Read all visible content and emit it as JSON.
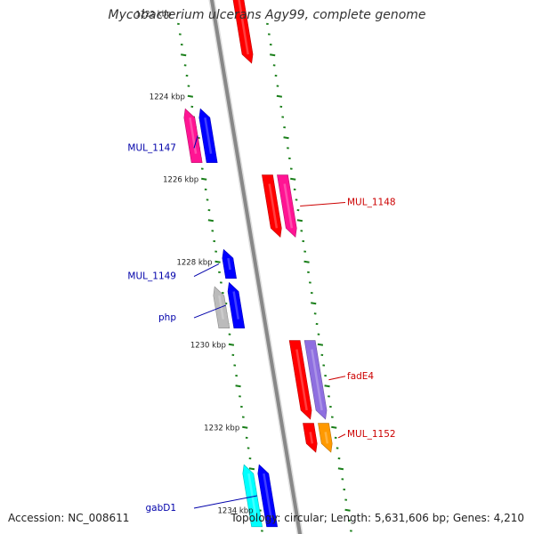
{
  "title": "Mycobacterium ulcerans Agy99, complete genome",
  "footer": {
    "accession_label": "Accession:",
    "accession": "NC_008611",
    "topology_label": "Topology:",
    "topology": "circular",
    "length_label": "Length:",
    "length": "5,631,606 bp",
    "genes_label": "Genes:",
    "genes": "4,210"
  },
  "colors": {
    "backbone": "#888888",
    "tick": "#1a7f1a",
    "label_blue": "#0000aa",
    "label_red": "#cc0000",
    "kbp_label": "#222222"
  },
  "scale_unit": "kbp",
  "kbp_markers": [
    1222,
    1224,
    1226,
    1228,
    1230,
    1232,
    1234
  ],
  "genes": [
    {
      "id": "g-top",
      "strand": "forward",
      "track": 1,
      "start_kbp": 1221.3,
      "end_kbp": 1223.2,
      "color": "#ff0000"
    },
    {
      "id": "g1",
      "strand": "reverse",
      "track": 2,
      "start_kbp": 1224.3,
      "end_kbp": 1225.6,
      "color": "#ff1493"
    },
    {
      "id": "g2",
      "strand": "reverse",
      "track": 1,
      "start_kbp": 1224.3,
      "end_kbp": 1225.6,
      "color": "#0000ff",
      "name": "MUL_1147",
      "side": "left",
      "label_color": "#0000aa"
    },
    {
      "id": "g3",
      "strand": "forward",
      "track": 1,
      "start_kbp": 1225.9,
      "end_kbp": 1227.4,
      "color": "#ff0000",
      "name": "MUL_1148",
      "side": "right",
      "label_color": "#cc0000"
    },
    {
      "id": "g4",
      "strand": "forward",
      "track": 2,
      "start_kbp": 1225.9,
      "end_kbp": 1227.4,
      "color": "#ff1493"
    },
    {
      "id": "g5",
      "strand": "reverse",
      "track": 1,
      "start_kbp": 1227.7,
      "end_kbp": 1228.4,
      "color": "#0000ff",
      "name": "MUL_1149",
      "side": "left",
      "label_color": "#0000aa"
    },
    {
      "id": "g6",
      "strand": "reverse",
      "track": 2,
      "start_kbp": 1228.6,
      "end_kbp": 1229.6,
      "color": "#bbbbbb"
    },
    {
      "id": "g7",
      "strand": "reverse",
      "track": 1,
      "start_kbp": 1228.5,
      "end_kbp": 1229.6,
      "color": "#0000ff",
      "name": "php",
      "side": "left",
      "label_color": "#0000aa"
    },
    {
      "id": "g8",
      "strand": "forward",
      "track": 1,
      "start_kbp": 1229.9,
      "end_kbp": 1231.8,
      "color": "#ff0000"
    },
    {
      "id": "g9",
      "strand": "forward",
      "track": 2,
      "start_kbp": 1229.9,
      "end_kbp": 1231.8,
      "color": "#8e6fe0",
      "name": "fadE4",
      "side": "right",
      "label_color": "#cc0000"
    },
    {
      "id": "g10",
      "strand": "forward",
      "track": 1,
      "start_kbp": 1231.9,
      "end_kbp": 1232.6,
      "color": "#ff0000"
    },
    {
      "id": "g11",
      "strand": "forward",
      "track": 2,
      "start_kbp": 1231.9,
      "end_kbp": 1232.6,
      "color": "#ff9900",
      "name": "MUL_1152",
      "side": "right",
      "label_color": "#cc0000"
    },
    {
      "id": "g12",
      "strand": "reverse",
      "track": 2,
      "start_kbp": 1232.9,
      "end_kbp": 1234.4,
      "color": "#00ffff"
    },
    {
      "id": "g13",
      "strand": "reverse",
      "track": 1,
      "start_kbp": 1232.9,
      "end_kbp": 1234.4,
      "color": "#0000ff",
      "name": "gabD1",
      "side": "left",
      "label_color": "#0000aa"
    }
  ]
}
